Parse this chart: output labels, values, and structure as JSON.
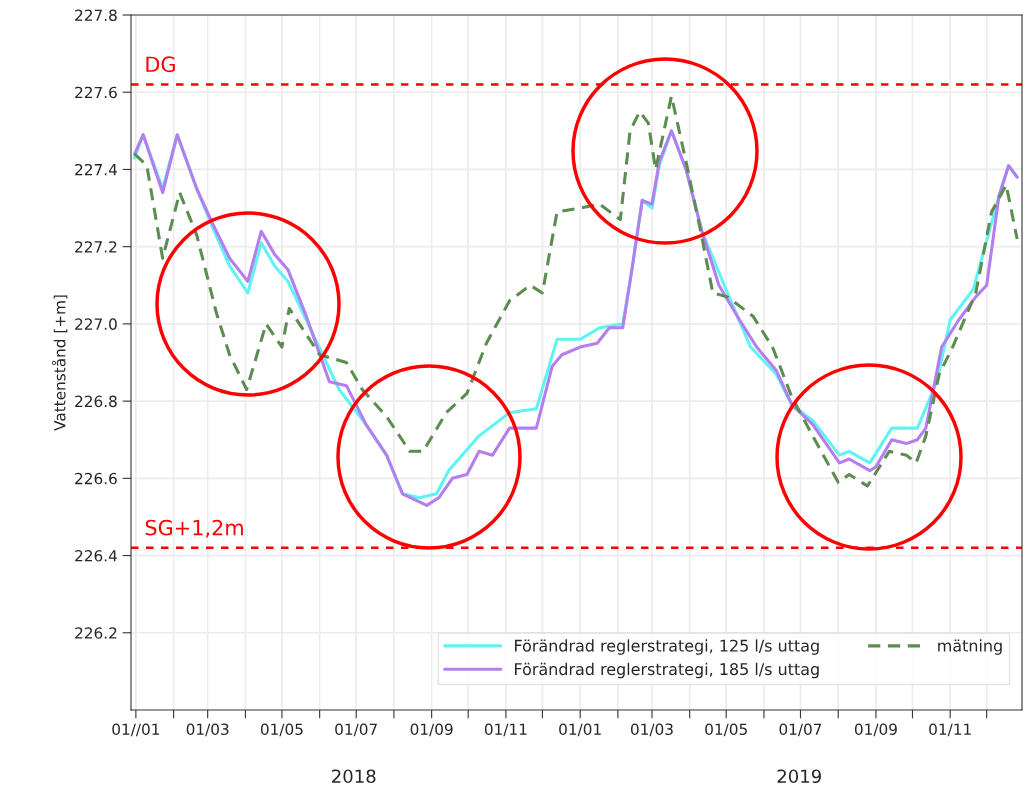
{
  "chart_data": {
    "type": "line",
    "ylabel": "Vattenstånd [+m]",
    "xlim": [
      "2017-12-28",
      "2019-12-30"
    ],
    "ylim": [
      226.0,
      227.8
    ],
    "xticks": [
      {
        "value": "2018-01-01",
        "label": "01//01"
      },
      {
        "value": "2018-02-01",
        "label": null
      },
      {
        "value": "2018-03-01",
        "label": "01/03"
      },
      {
        "value": "2018-04-01",
        "label": null
      },
      {
        "value": "2018-05-01",
        "label": "01/05"
      },
      {
        "value": "2018-06-01",
        "label": null
      },
      {
        "value": "2018-07-01",
        "label": "01/07"
      },
      {
        "value": "2018-08-01",
        "label": null
      },
      {
        "value": "2018-09-01",
        "label": "01/09"
      },
      {
        "value": "2018-10-01",
        "label": null
      },
      {
        "value": "2018-11-01",
        "label": "01/11"
      },
      {
        "value": "2018-12-01",
        "label": null
      },
      {
        "value": "2019-01-01",
        "label": "01/01"
      },
      {
        "value": "2019-02-01",
        "label": null
      },
      {
        "value": "2019-03-01",
        "label": "01/03"
      },
      {
        "value": "2019-04-01",
        "label": null
      },
      {
        "value": "2019-05-01",
        "label": "01/05"
      },
      {
        "value": "2019-06-01",
        "label": null
      },
      {
        "value": "2019-07-01",
        "label": "01/07"
      },
      {
        "value": "2019-08-01",
        "label": null
      },
      {
        "value": "2019-09-01",
        "label": "01/09"
      },
      {
        "value": "2019-10-01",
        "label": null
      },
      {
        "value": "2019-11-01",
        "label": "01/11"
      },
      {
        "value": "2019-12-01",
        "label": null
      }
    ],
    "yticks": [
      226.2,
      226.4,
      226.6,
      226.8,
      {
        "value": 227.0,
        "label": "227.0"
      },
      227.2,
      227.4,
      227.6,
      227.8
    ],
    "grid": true,
    "legend": "bottom right",
    "annotations": [
      "2018",
      "2019"
    ],
    "ref_lines": [
      {
        "axis": "y",
        "value": 227.62,
        "label": "DG",
        "color": "#ff0000",
        "line_style": "dashed"
      },
      {
        "axis": "y",
        "value": 226.42,
        "label": "SG+1,2m",
        "color": "#ff0000",
        "line_style": "dashed"
      }
    ],
    "series": [
      {
        "name": "Förändrad reglerstrategi, 125 l/s uttag",
        "color": "#5ff3f3",
        "line_style": "solid",
        "x": [
          "2017-12-31",
          "2018-01-07",
          "2018-01-23",
          "2018-02-04",
          "2018-02-20",
          "2018-03-05",
          "2018-03-19",
          "2018-04-03",
          "2018-04-14",
          "2018-04-25",
          "2018-05-06",
          "2018-05-21",
          "2018-06-17",
          "2018-07-09",
          "2018-07-26",
          "2018-08-08",
          "2018-08-22",
          "2018-09-05",
          "2018-09-15",
          "2018-10-10",
          "2018-11-04",
          "2018-11-26",
          "2018-12-13",
          "2019-01-01",
          "2019-01-17",
          "2019-02-05",
          "2019-02-12",
          "2019-02-21",
          "2019-03-01",
          "2019-03-07",
          "2019-03-17",
          "2019-03-29",
          "2019-04-11",
          "2019-05-02",
          "2019-05-21",
          "2019-06-11",
          "2019-06-24",
          "2019-07-11",
          "2019-08-02",
          "2019-08-10",
          "2019-08-27",
          "2019-09-14",
          "2019-10-05",
          "2019-10-21",
          "2019-11-01",
          "2019-11-20",
          "2019-12-11",
          "2019-12-19",
          "2019-12-26"
        ],
        "values": [
          227.43,
          227.49,
          227.35,
          227.49,
          227.35,
          227.25,
          227.15,
          227.08,
          227.21,
          227.15,
          227.11,
          227.01,
          226.83,
          226.74,
          226.66,
          226.56,
          226.55,
          226.56,
          226.62,
          226.71,
          226.77,
          226.78,
          226.96,
          226.96,
          226.99,
          227.0,
          227.13,
          227.32,
          227.3,
          227.41,
          227.5,
          227.4,
          227.24,
          227.08,
          226.94,
          226.87,
          226.79,
          226.75,
          226.66,
          226.67,
          226.64,
          226.73,
          226.73,
          226.85,
          227.01,
          227.09,
          227.33,
          227.41,
          227.38
        ]
      },
      {
        "name": "Förändrad reglerstrategi, 185 l/s uttag",
        "color": "#b47ef0",
        "line_style": "solid",
        "x": [
          "2017-12-31",
          "2018-01-07",
          "2018-01-23",
          "2018-02-04",
          "2018-02-20",
          "2018-03-05",
          "2018-03-19",
          "2018-04-03",
          "2018-04-14",
          "2018-04-25",
          "2018-05-06",
          "2018-05-21",
          "2018-06-09",
          "2018-06-23",
          "2018-07-09",
          "2018-07-26",
          "2018-08-08",
          "2018-08-28",
          "2018-09-07",
          "2018-09-18",
          "2018-09-30",
          "2018-10-10",
          "2018-10-21",
          "2018-11-04",
          "2018-11-26",
          "2018-12-09",
          "2018-12-17",
          "2019-01-01",
          "2019-01-15",
          "2019-01-25",
          "2019-02-05",
          "2019-02-12",
          "2019-02-21",
          "2019-03-01",
          "2019-03-07",
          "2019-03-17",
          "2019-03-29",
          "2019-04-11",
          "2019-04-25",
          "2019-05-12",
          "2019-05-26",
          "2019-06-11",
          "2019-06-24",
          "2019-07-11",
          "2019-08-02",
          "2019-08-10",
          "2019-08-27",
          "2019-09-01",
          "2019-09-14",
          "2019-09-26",
          "2019-10-05",
          "2019-10-12",
          "2019-10-25",
          "2019-11-08",
          "2019-11-22",
          "2019-12-01",
          "2019-12-11",
          "2019-12-19",
          "2019-12-26"
        ],
        "values": [
          227.44,
          227.49,
          227.34,
          227.49,
          227.35,
          227.26,
          227.17,
          227.11,
          227.24,
          227.18,
          227.14,
          227.02,
          226.85,
          226.84,
          226.74,
          226.66,
          226.56,
          226.53,
          226.55,
          226.6,
          226.61,
          226.67,
          226.66,
          226.73,
          226.73,
          226.89,
          226.92,
          226.94,
          226.95,
          226.99,
          226.99,
          227.13,
          227.32,
          227.31,
          227.42,
          227.5,
          227.4,
          227.24,
          227.1,
          227.01,
          226.94,
          226.88,
          226.79,
          226.74,
          226.64,
          226.65,
          226.62,
          226.63,
          226.7,
          226.69,
          226.7,
          226.73,
          226.94,
          227.01,
          227.07,
          227.1,
          227.33,
          227.41,
          227.38
        ]
      },
      {
        "name": "mätning",
        "color": "#5b8c50",
        "line_style": "dashed",
        "x": [
          "2017-12-31",
          "2018-01-10",
          "2018-01-23",
          "2018-02-06",
          "2018-02-20",
          "2018-03-08",
          "2018-03-19",
          "2018-04-02",
          "2018-04-18",
          "2018-05-01",
          "2018-05-07",
          "2018-06-01",
          "2018-06-23",
          "2018-07-06",
          "2018-07-26",
          "2018-08-14",
          "2018-08-25",
          "2018-09-13",
          "2018-09-30",
          "2018-10-16",
          "2018-11-04",
          "2018-11-21",
          "2018-12-01",
          "2018-12-13",
          "2019-01-01",
          "2019-01-17",
          "2019-02-03",
          "2019-02-11",
          "2019-02-19",
          "2019-02-26",
          "2019-03-04",
          "2019-03-17",
          "2019-03-29",
          "2019-04-10",
          "2019-04-20",
          "2019-05-02",
          "2019-05-23",
          "2019-06-08",
          "2019-06-24",
          "2019-07-11",
          "2019-08-01",
          "2019-08-10",
          "2019-08-25",
          "2019-09-12",
          "2019-09-26",
          "2019-10-04",
          "2019-10-12",
          "2019-10-23",
          "2019-11-03",
          "2019-11-22",
          "2019-12-05",
          "2019-12-17",
          "2019-12-26"
        ],
        "values": [
          227.44,
          227.41,
          227.17,
          227.34,
          227.23,
          227.03,
          226.92,
          226.83,
          227.0,
          226.94,
          227.04,
          226.92,
          226.9,
          226.83,
          226.76,
          226.67,
          226.67,
          226.77,
          226.82,
          226.95,
          227.06,
          227.1,
          227.08,
          227.29,
          227.3,
          227.31,
          227.27,
          227.5,
          227.55,
          227.52,
          227.4,
          227.59,
          227.42,
          227.24,
          227.08,
          227.07,
          227.02,
          226.94,
          226.81,
          226.71,
          226.59,
          226.61,
          226.58,
          226.67,
          226.66,
          226.64,
          226.71,
          226.87,
          226.94,
          227.08,
          227.29,
          227.36,
          227.22
        ]
      }
    ]
  }
}
